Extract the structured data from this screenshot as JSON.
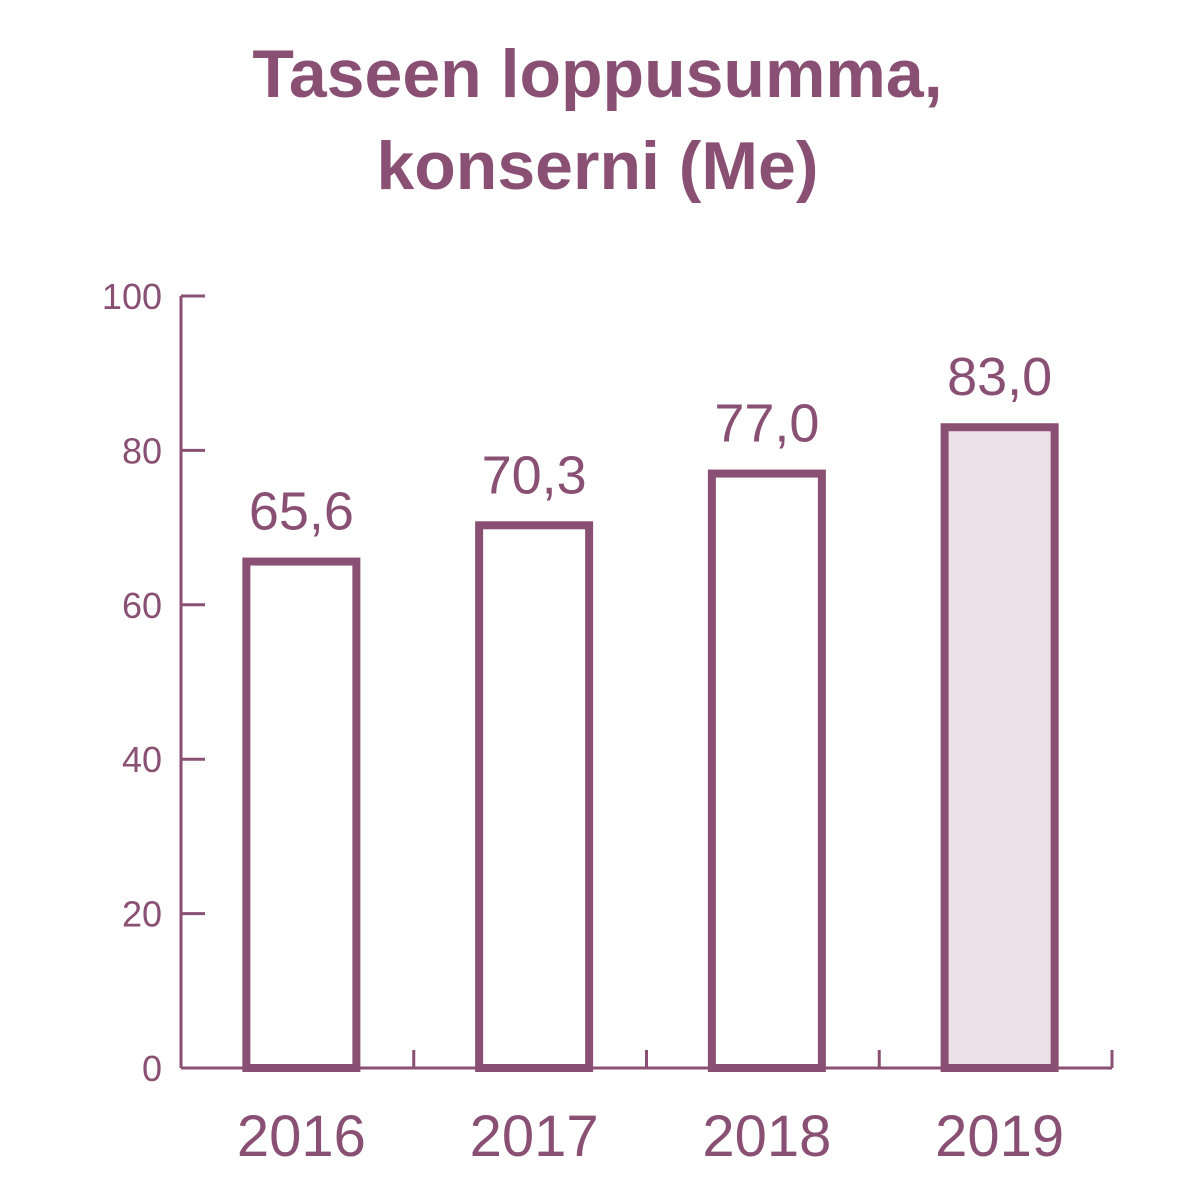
{
  "chart_data": {
    "type": "bar",
    "title_lines": [
      "Taseen loppusumma,",
      "konserni (Me)"
    ],
    "categories": [
      "2016",
      "2017",
      "2018",
      "2019"
    ],
    "values": [
      65.6,
      70.3,
      77.0,
      83.0
    ],
    "value_labels": [
      "65,6",
      "70,3",
      "77,0",
      "83,0"
    ],
    "highlight_index": 3,
    "ylim": [
      0,
      100
    ],
    "yticks": [
      0,
      20,
      40,
      60,
      80,
      100
    ],
    "xlabel": "",
    "ylabel": "",
    "grid": false,
    "colors": {
      "primary": "#8a5074",
      "highlight_fill": "#ece0e7",
      "bar_fill": "#ffffff"
    }
  }
}
